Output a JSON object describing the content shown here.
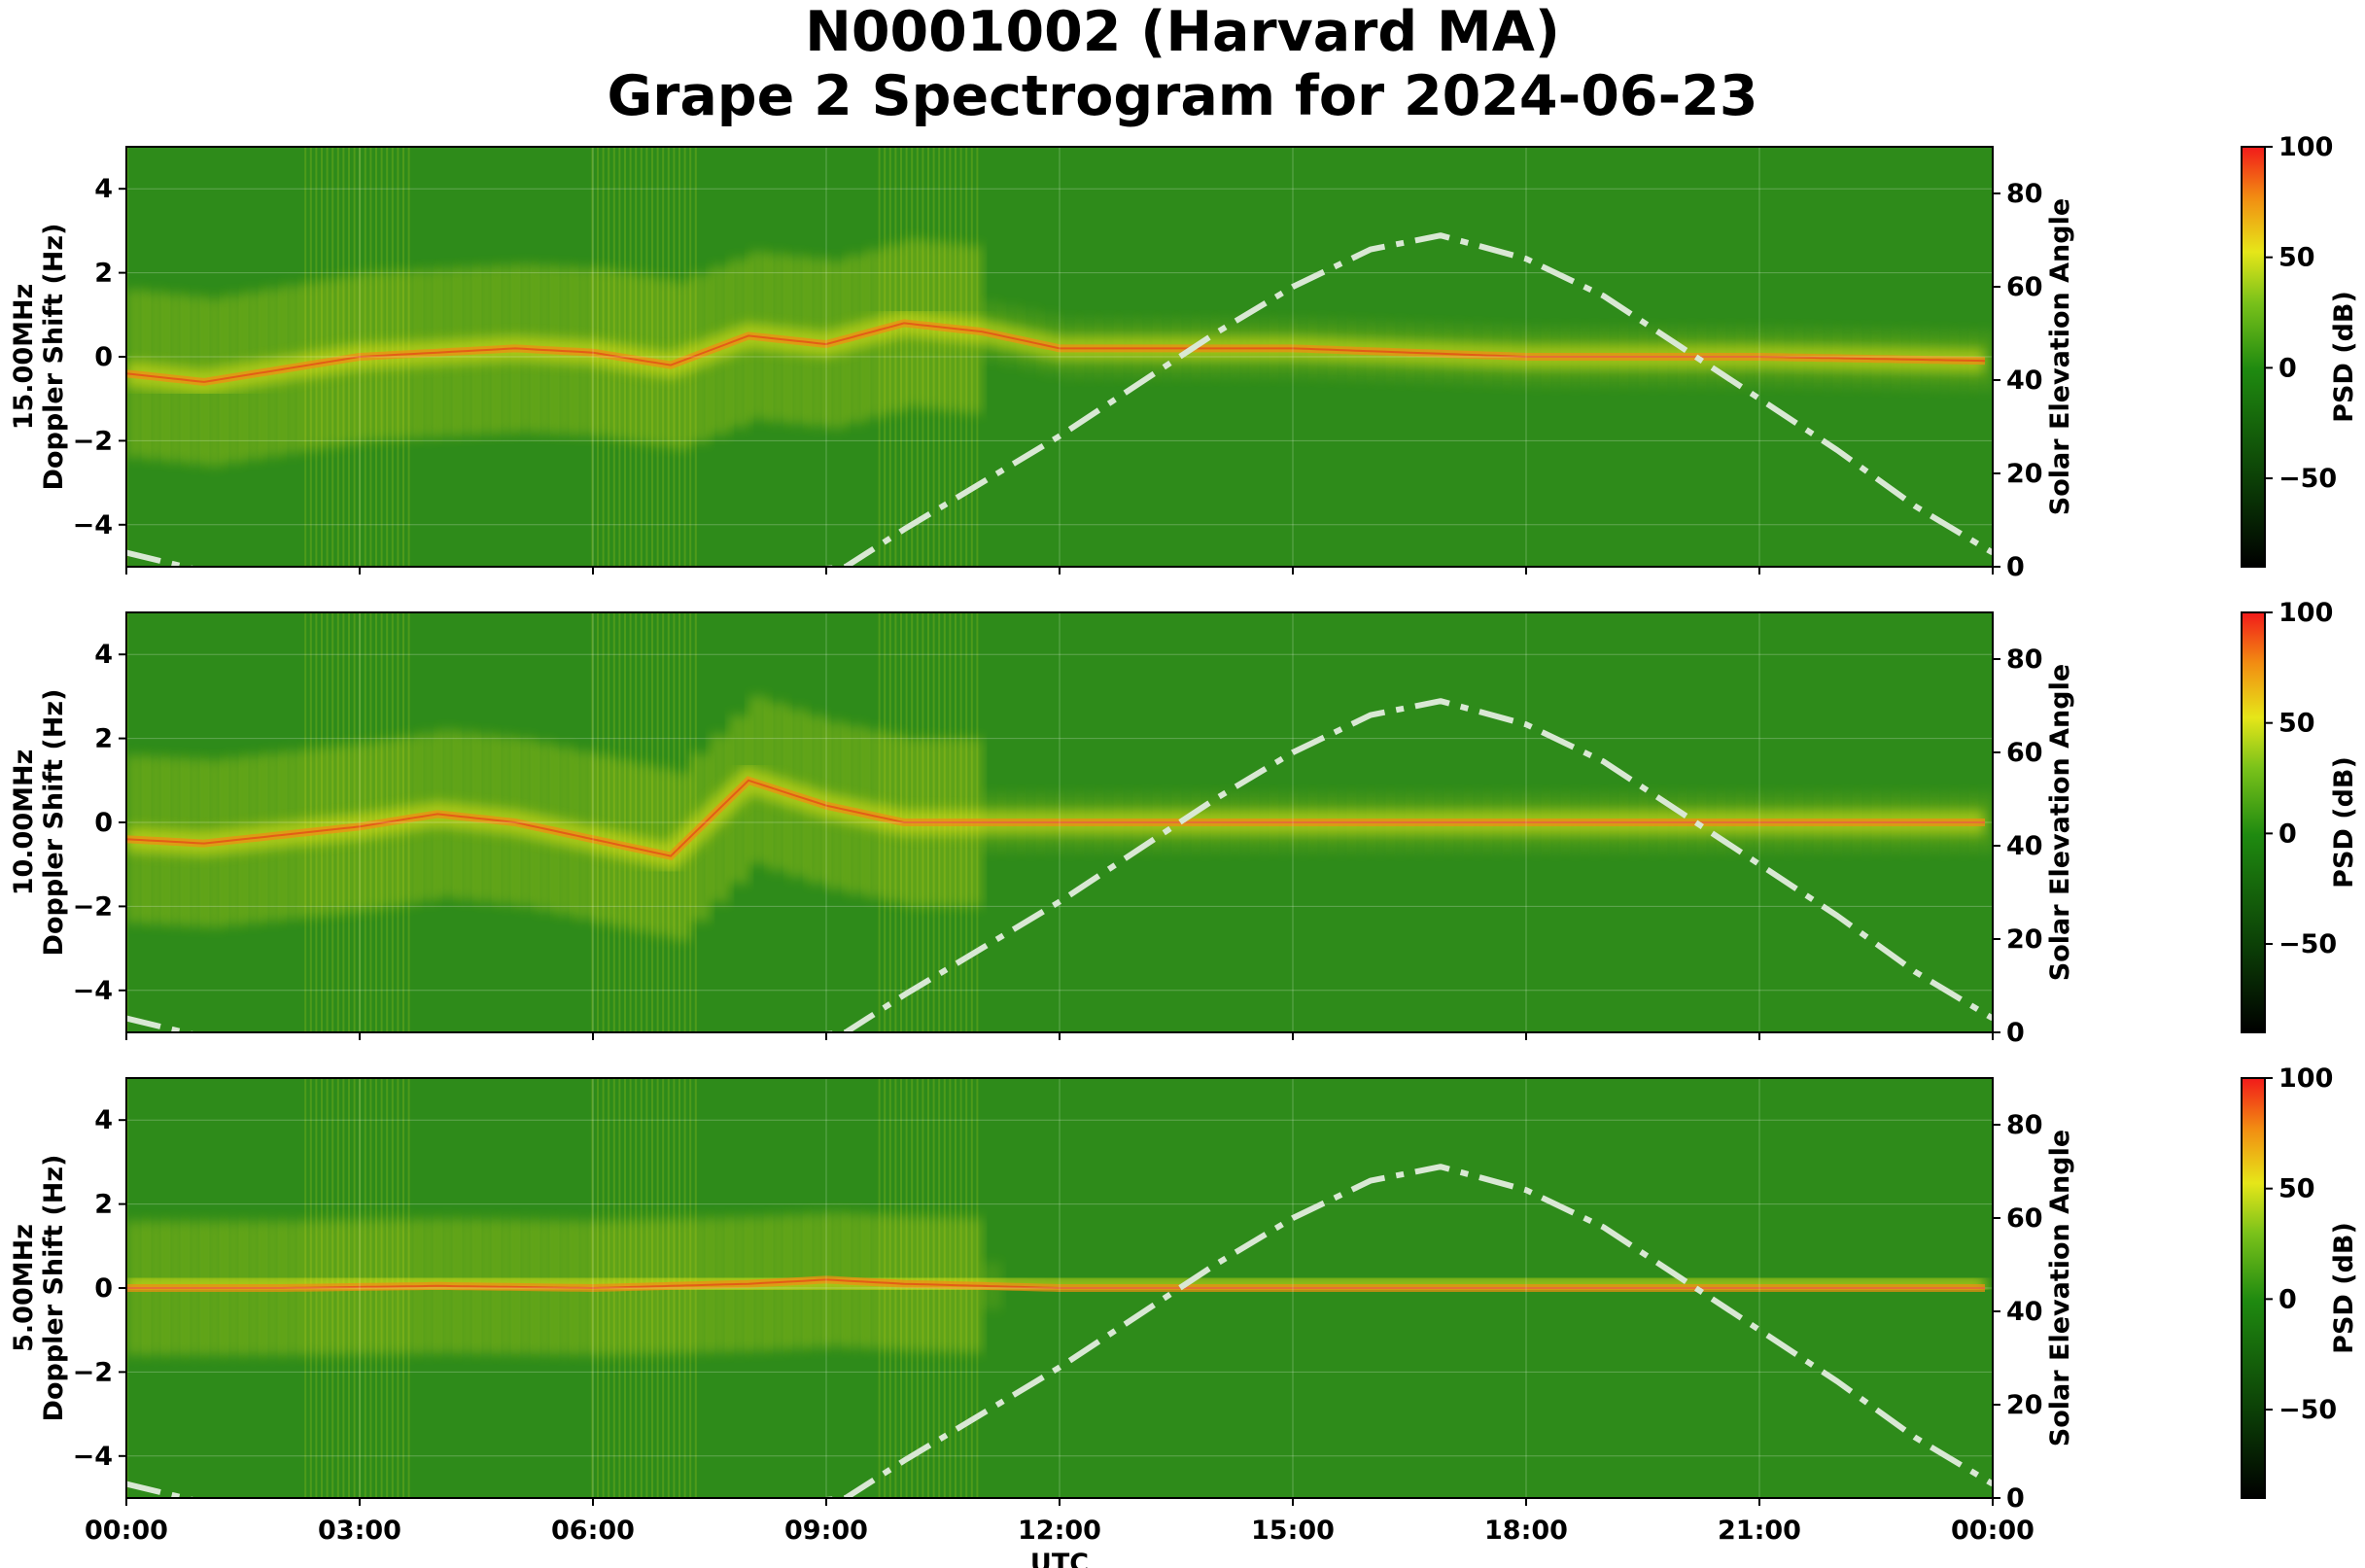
{
  "figure": {
    "title_line1": "N0001002 (Harvard MA)",
    "title_line2": "Grape 2 Spectrogram for 2024-06-23"
  },
  "chart_data": [
    {
      "type": "heatmap",
      "panel_label": "15.00MHz",
      "ylabel": "Doppler Shift (Hz)",
      "y2label": "Solar Elevation Angle",
      "xlabel": "",
      "ylim": [
        -5,
        5
      ],
      "y2lim": [
        0,
        90
      ],
      "yticks": [
        "−4",
        "−2",
        "0",
        "2",
        "4"
      ],
      "y2ticks": [
        "0",
        "20",
        "40",
        "60",
        "80"
      ],
      "xticks": [
        "00:00",
        "03:00",
        "06:00",
        "09:00",
        "12:00",
        "15:00",
        "18:00",
        "21:00",
        "00:00"
      ],
      "colorbar": {
        "label": "PSD (dB)",
        "range": [
          -90,
          100
        ],
        "ticks": [
          "100",
          "50",
          "0",
          "−50"
        ]
      },
      "carrier_trace_hz": [
        [
          0,
          -0.4
        ],
        [
          1,
          -0.6
        ],
        [
          2,
          -0.3
        ],
        [
          3,
          0.0
        ],
        [
          4,
          0.1
        ],
        [
          5,
          0.2
        ],
        [
          6,
          0.1
        ],
        [
          7,
          -0.2
        ],
        [
          8,
          0.5
        ],
        [
          9,
          0.3
        ],
        [
          10,
          0.8
        ],
        [
          11,
          0.6
        ],
        [
          12,
          0.2
        ],
        [
          13,
          0.2
        ],
        [
          15,
          0.2
        ],
        [
          18,
          0.0
        ],
        [
          21,
          0.0
        ],
        [
          24,
          -0.1
        ]
      ],
      "solar_elevation_deg": [
        [
          0,
          3
        ],
        [
          2,
          -5
        ],
        [
          4,
          -10
        ],
        [
          6,
          -8
        ],
        [
          8,
          -2
        ],
        [
          9.25,
          0
        ],
        [
          10,
          8
        ],
        [
          12,
          28
        ],
        [
          14,
          50
        ],
        [
          15,
          60
        ],
        [
          16,
          68
        ],
        [
          16.9,
          71
        ],
        [
          18,
          66
        ],
        [
          19,
          58
        ],
        [
          20,
          47
        ],
        [
          21,
          36
        ],
        [
          22,
          25
        ],
        [
          23,
          13
        ],
        [
          24,
          3
        ]
      ]
    },
    {
      "type": "heatmap",
      "panel_label": "10.00MHz",
      "ylabel": "Doppler Shift (Hz)",
      "y2label": "Solar Elevation Angle",
      "xlabel": "",
      "ylim": [
        -5,
        5
      ],
      "y2lim": [
        0,
        90
      ],
      "yticks": [
        "−4",
        "−2",
        "0",
        "2",
        "4"
      ],
      "y2ticks": [
        "0",
        "20",
        "40",
        "60",
        "80"
      ],
      "xticks": [
        "00:00",
        "03:00",
        "06:00",
        "09:00",
        "12:00",
        "15:00",
        "18:00",
        "21:00",
        "00:00"
      ],
      "colorbar": {
        "label": "PSD (dB)",
        "range": [
          -90,
          100
        ],
        "ticks": [
          "100",
          "50",
          "0",
          "−50"
        ]
      },
      "carrier_trace_hz": [
        [
          0,
          -0.4
        ],
        [
          1,
          -0.5
        ],
        [
          2,
          -0.3
        ],
        [
          3,
          -0.1
        ],
        [
          4,
          0.2
        ],
        [
          5,
          0.0
        ],
        [
          6,
          -0.4
        ],
        [
          7,
          -0.8
        ],
        [
          8,
          1.0
        ],
        [
          9,
          0.4
        ],
        [
          10,
          0.0
        ],
        [
          12,
          0.0
        ],
        [
          13,
          0.0
        ],
        [
          15,
          0.0
        ],
        [
          18,
          0.0
        ],
        [
          21,
          0.0
        ],
        [
          24,
          0.0
        ]
      ],
      "solar_elevation_deg": [
        [
          0,
          3
        ],
        [
          2,
          -5
        ],
        [
          4,
          -10
        ],
        [
          6,
          -8
        ],
        [
          8,
          -2
        ],
        [
          9.25,
          0
        ],
        [
          10,
          8
        ],
        [
          12,
          28
        ],
        [
          14,
          50
        ],
        [
          15,
          60
        ],
        [
          16,
          68
        ],
        [
          16.9,
          71
        ],
        [
          18,
          66
        ],
        [
          19,
          58
        ],
        [
          20,
          47
        ],
        [
          21,
          36
        ],
        [
          22,
          25
        ],
        [
          23,
          13
        ],
        [
          24,
          3
        ]
      ]
    },
    {
      "type": "heatmap",
      "panel_label": "5.00MHz",
      "ylabel": "Doppler Shift (Hz)",
      "y2label": "Solar Elevation Angle",
      "xlabel": "UTC",
      "ylim": [
        -5,
        5
      ],
      "y2lim": [
        0,
        90
      ],
      "yticks": [
        "−4",
        "−2",
        "0",
        "2",
        "4"
      ],
      "y2ticks": [
        "0",
        "20",
        "40",
        "60",
        "80"
      ],
      "xticks": [
        "00:00",
        "03:00",
        "06:00",
        "09:00",
        "12:00",
        "15:00",
        "18:00",
        "21:00",
        "00:00"
      ],
      "colorbar": {
        "label": "PSD (dB)",
        "range": [
          -90,
          100
        ],
        "ticks": [
          "100",
          "50",
          "0",
          "−50"
        ]
      },
      "carrier_trace_hz": [
        [
          0,
          0.0
        ],
        [
          2,
          0.0
        ],
        [
          4,
          0.05
        ],
        [
          6,
          0.0
        ],
        [
          8,
          0.1
        ],
        [
          9,
          0.2
        ],
        [
          10,
          0.1
        ],
        [
          11,
          0.05
        ],
        [
          12,
          0.0
        ],
        [
          15,
          0.0
        ],
        [
          18,
          0.0
        ],
        [
          21,
          0.0
        ],
        [
          24,
          0.0
        ]
      ],
      "solar_elevation_deg": [
        [
          0,
          3
        ],
        [
          2,
          -5
        ],
        [
          4,
          -10
        ],
        [
          6,
          -8
        ],
        [
          8,
          -2
        ],
        [
          9.25,
          0
        ],
        [
          10,
          8
        ],
        [
          12,
          28
        ],
        [
          14,
          50
        ],
        [
          15,
          60
        ],
        [
          16,
          68
        ],
        [
          16.9,
          71
        ],
        [
          18,
          66
        ],
        [
          19,
          58
        ],
        [
          20,
          47
        ],
        [
          21,
          36
        ],
        [
          22,
          25
        ],
        [
          23,
          13
        ],
        [
          24,
          3
        ]
      ]
    }
  ],
  "colors": {
    "background_dark_green": "#1f7a14",
    "background_green": "#2e8b1a",
    "activity_yellow": "#e6e619",
    "activity_orange": "#f28c12",
    "activity_red": "#e8321a",
    "solar_curve": "#d9e8d4"
  }
}
